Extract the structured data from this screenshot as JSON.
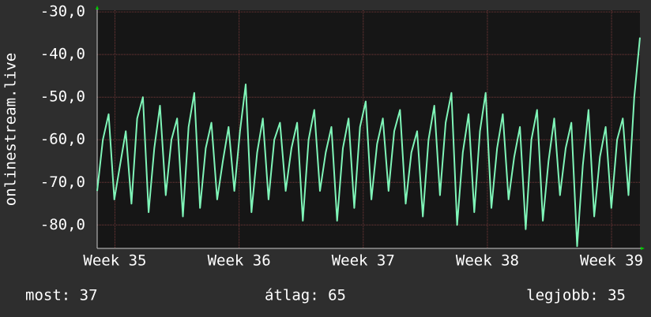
{
  "chart_data": {
    "type": "line",
    "y_label": "onlinestream.live",
    "color": "#7ff5b8",
    "xlim": [
      0,
      30.6
    ],
    "xticks": [
      {
        "value": 1,
        "label": "Week 35"
      },
      {
        "value": 8,
        "label": "Week 36"
      },
      {
        "value": 15,
        "label": "Week 37"
      },
      {
        "value": 22,
        "label": "Week 38"
      },
      {
        "value": 29,
        "label": "Week 39"
      }
    ],
    "ylim": [
      -85.5,
      -29.6
    ],
    "yticks": [
      {
        "value": -30,
        "label": "-30,0"
      },
      {
        "value": -40,
        "label": "-40,0"
      },
      {
        "value": -50,
        "label": "-50,0"
      },
      {
        "value": -60,
        "label": "-60,0"
      },
      {
        "value": -70,
        "label": "-70,0"
      },
      {
        "value": -80,
        "label": "-80,0"
      }
    ],
    "grid": true,
    "values": [
      -72,
      -60,
      -54,
      -74,
      -66,
      -58,
      -75,
      -55,
      -50,
      -77,
      -62,
      -52,
      -73,
      -60,
      -55,
      -78,
      -57,
      -49,
      -76,
      -62,
      -56,
      -74,
      -65,
      -57,
      -72,
      -58,
      -47,
      -77,
      -63,
      -55,
      -74,
      -60,
      -56,
      -72,
      -62,
      -56,
      -79,
      -60,
      -53,
      -72,
      -63,
      -57,
      -79,
      -62,
      -55,
      -76,
      -57,
      -51,
      -74,
      -61,
      -55,
      -72,
      -58,
      -53,
      -75,
      -63,
      -58,
      -78,
      -60,
      -52,
      -73,
      -56,
      -49,
      -80,
      -63,
      -54,
      -77,
      -58,
      -49,
      -76,
      -62,
      -54,
      -74,
      -64,
      -57,
      -81,
      -60,
      -53,
      -79,
      -65,
      -55,
      -73,
      -62,
      -56,
      -85,
      -66,
      -53,
      -78,
      -64,
      -57,
      -76,
      -60,
      -55,
      -73,
      -50,
      -36
    ]
  },
  "footer": {
    "current": "most: 37",
    "average": "átlag: 65",
    "best": "legjobb: 35"
  }
}
